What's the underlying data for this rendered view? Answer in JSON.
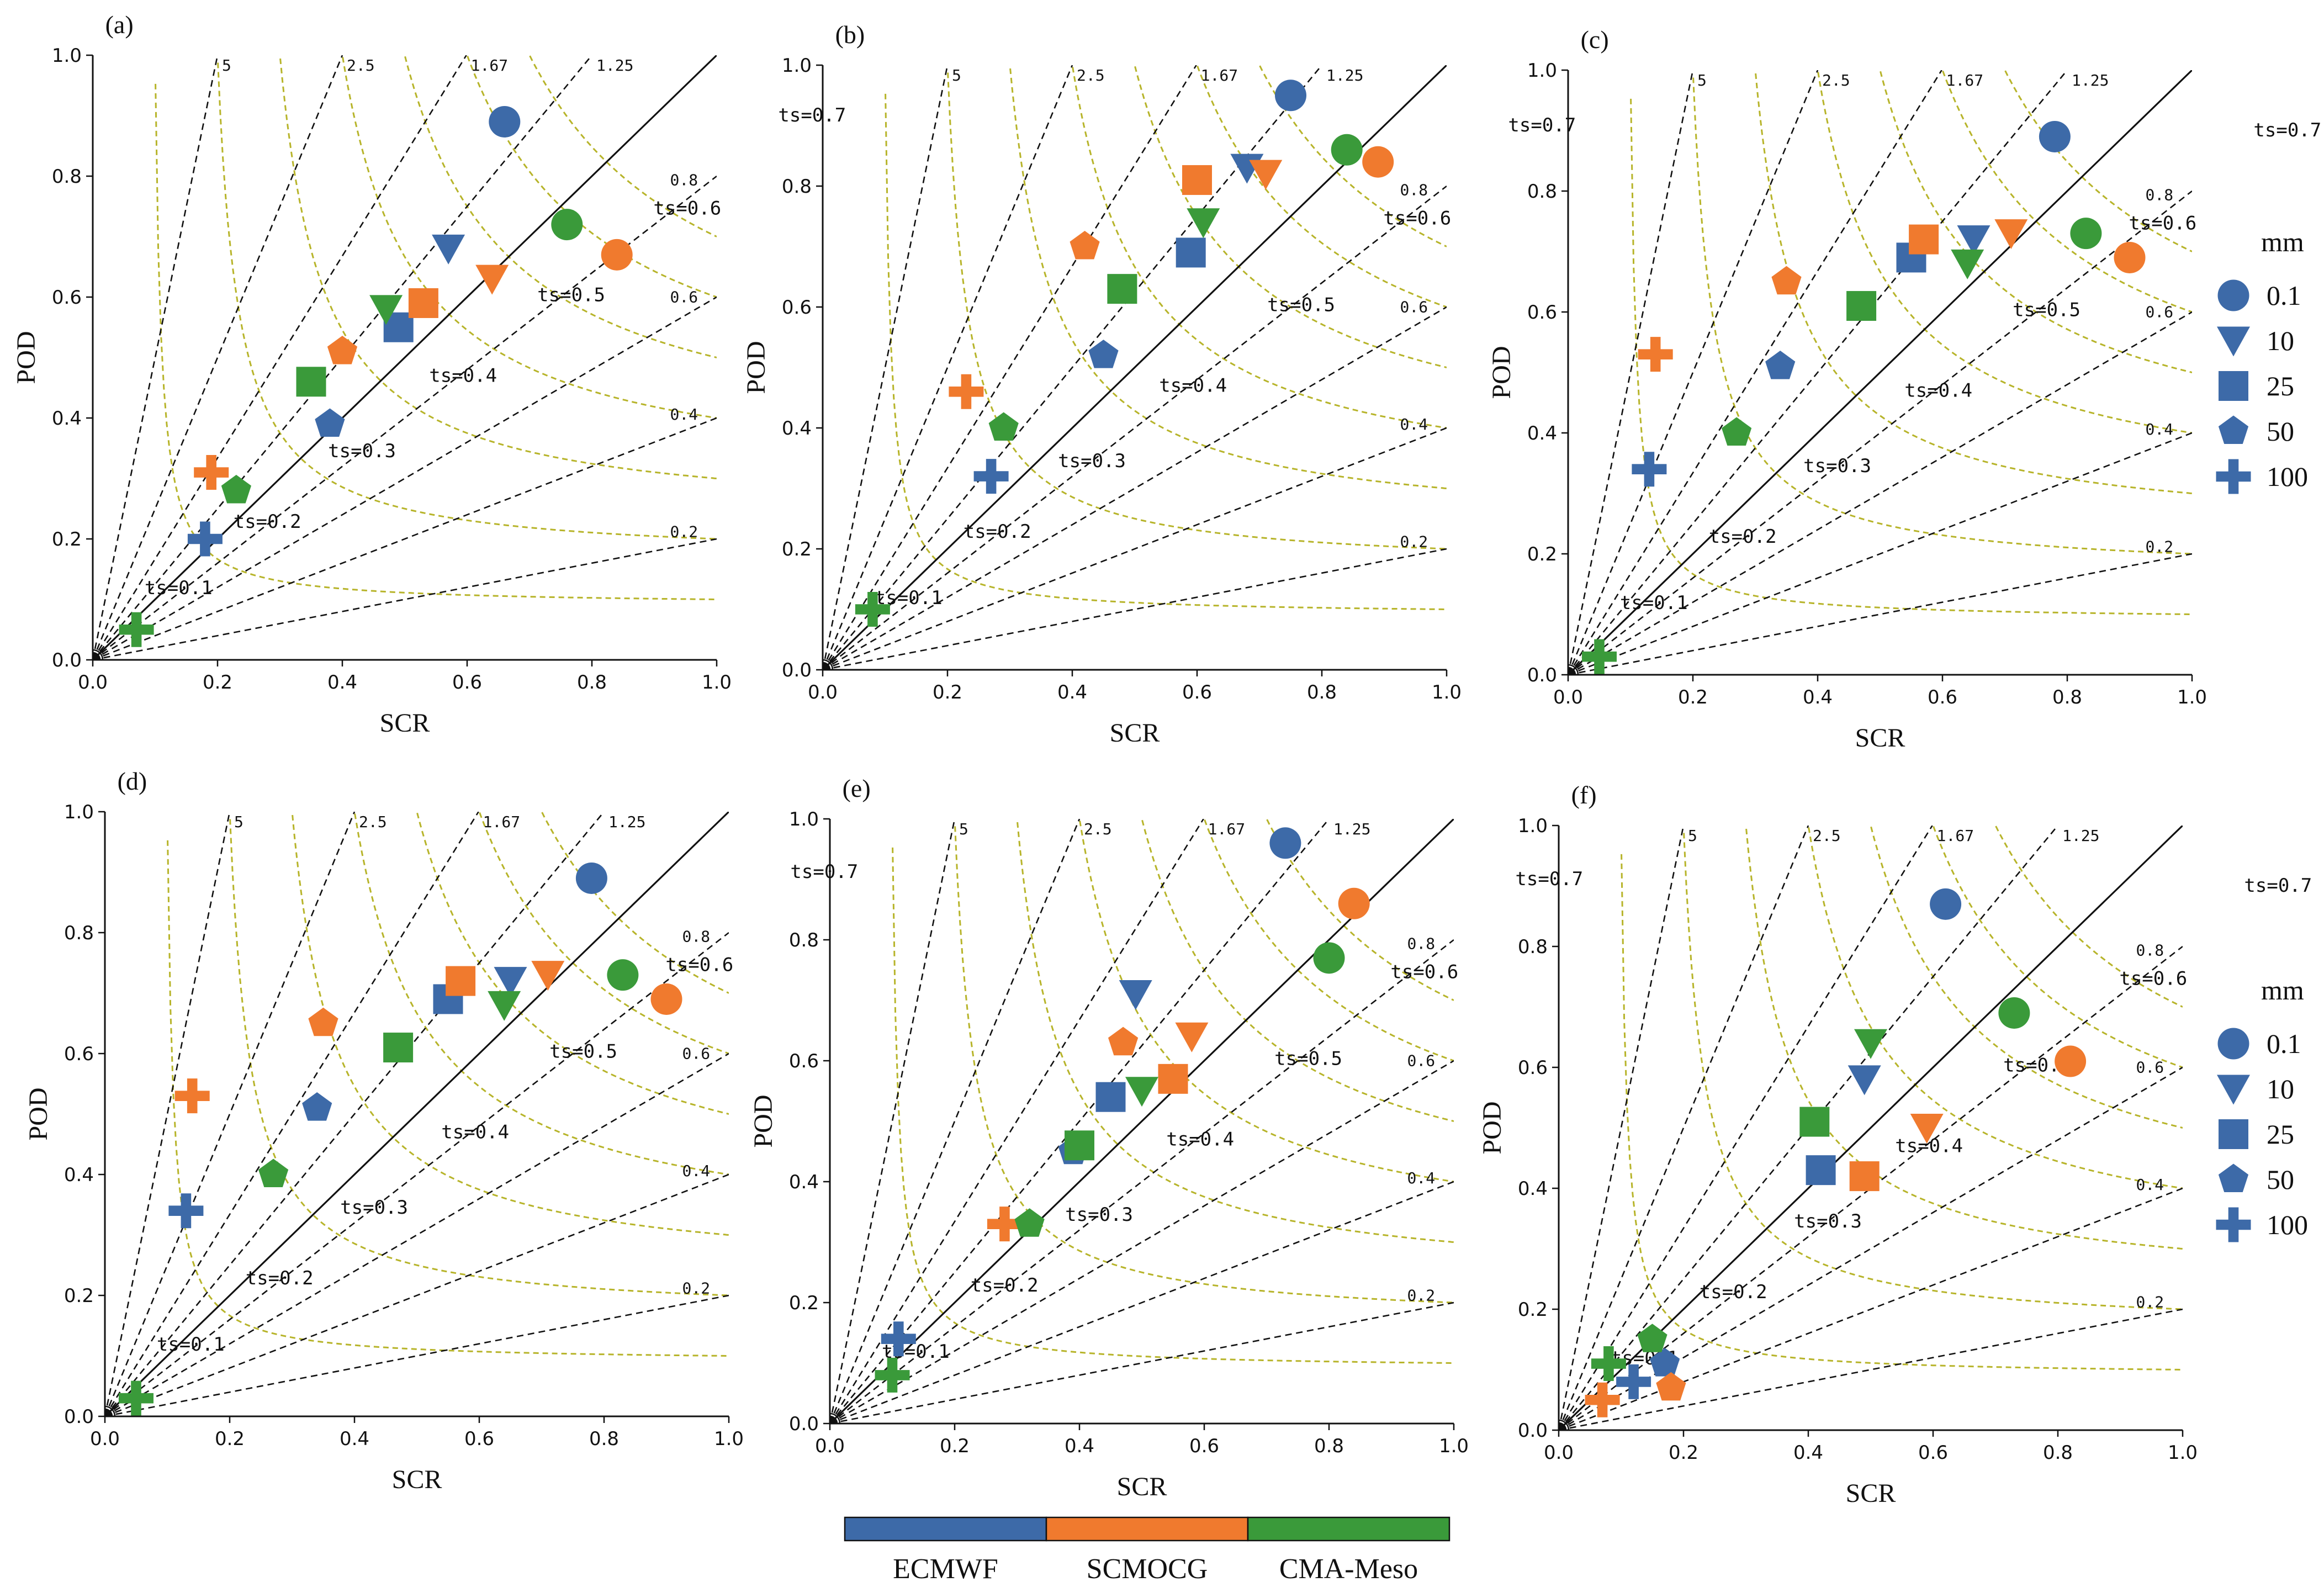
{
  "chart_data": {
    "type": "scatter",
    "figure_kind": "performance diagram",
    "xlabel": "SCR",
    "ylabel": "POD",
    "xlim": [
      0,
      1
    ],
    "ylim": [
      0,
      1
    ],
    "ticks": [
      0.0,
      0.2,
      0.4,
      0.6,
      0.8,
      1.0
    ],
    "tick_labels": [
      "0.0",
      "0.2",
      "0.4",
      "0.6",
      "0.8",
      "1.0"
    ],
    "bias_lines": [
      {
        "value": 5,
        "label": "5"
      },
      {
        "value": 2.5,
        "label": "2.5"
      },
      {
        "value": 1.67,
        "label": "1.67"
      },
      {
        "value": 1.25,
        "label": "1.25"
      },
      {
        "value": 1.0,
        "label": ""
      },
      {
        "value": 0.8,
        "label": "0.8"
      },
      {
        "value": 0.6,
        "label": "0.6"
      },
      {
        "value": 0.4,
        "label": "0.4"
      },
      {
        "value": 0.2,
        "label": "0.2"
      }
    ],
    "ts_contours": [
      {
        "value": 0.1,
        "label": "ts=0.1"
      },
      {
        "value": 0.2,
        "label": "ts=0.2"
      },
      {
        "value": 0.3,
        "label": "ts=0.3"
      },
      {
        "value": 0.4,
        "label": "ts=0.4"
      },
      {
        "value": 0.5,
        "label": "ts=0.5"
      },
      {
        "value": 0.6,
        "label": "ts=0.6"
      },
      {
        "value": 0.7,
        "label": "ts=0.7"
      }
    ],
    "models": [
      {
        "name": "ECMWF",
        "color": "#3d6aa8"
      },
      {
        "name": "SCMOCG",
        "color": "#f07a2e"
      },
      {
        "name": "CMA-Meso",
        "color": "#3a9a3a"
      }
    ],
    "thresholds": [
      {
        "label": "0.1",
        "marker": "circle"
      },
      {
        "label": "10",
        "marker": "triangle-down"
      },
      {
        "label": "25",
        "marker": "square"
      },
      {
        "label": "50",
        "marker": "pentagon"
      },
      {
        "label": "100",
        "marker": "plus"
      }
    ],
    "legend_title": "mm",
    "panels": [
      {
        "label": "(a)",
        "points": [
          {
            "model": "ECMWF",
            "threshold": "0.1",
            "x": 0.66,
            "y": 0.89
          },
          {
            "model": "ECMWF",
            "threshold": "10",
            "x": 0.57,
            "y": 0.68
          },
          {
            "model": "ECMWF",
            "threshold": "25",
            "x": 0.49,
            "y": 0.55
          },
          {
            "model": "ECMWF",
            "threshold": "50",
            "x": 0.38,
            "y": 0.39
          },
          {
            "model": "ECMWF",
            "threshold": "100",
            "x": 0.18,
            "y": 0.2
          },
          {
            "model": "SCMOCG",
            "threshold": "0.1",
            "x": 0.84,
            "y": 0.67
          },
          {
            "model": "SCMOCG",
            "threshold": "10",
            "x": 0.64,
            "y": 0.63
          },
          {
            "model": "SCMOCG",
            "threshold": "25",
            "x": 0.53,
            "y": 0.59
          },
          {
            "model": "SCMOCG",
            "threshold": "50",
            "x": 0.4,
            "y": 0.51
          },
          {
            "model": "SCMOCG",
            "threshold": "100",
            "x": 0.19,
            "y": 0.31
          },
          {
            "model": "CMA-Meso",
            "threshold": "0.1",
            "x": 0.76,
            "y": 0.72
          },
          {
            "model": "CMA-Meso",
            "threshold": "10",
            "x": 0.47,
            "y": 0.58
          },
          {
            "model": "CMA-Meso",
            "threshold": "25",
            "x": 0.35,
            "y": 0.46
          },
          {
            "model": "CMA-Meso",
            "threshold": "50",
            "x": 0.23,
            "y": 0.28
          },
          {
            "model": "CMA-Meso",
            "threshold": "100",
            "x": 0.07,
            "y": 0.05
          }
        ]
      },
      {
        "label": "(b)",
        "points": [
          {
            "model": "ECMWF",
            "threshold": "0.1",
            "x": 0.75,
            "y": 0.95
          },
          {
            "model": "ECMWF",
            "threshold": "10",
            "x": 0.68,
            "y": 0.83
          },
          {
            "model": "ECMWF",
            "threshold": "25",
            "x": 0.59,
            "y": 0.69
          },
          {
            "model": "ECMWF",
            "threshold": "50",
            "x": 0.45,
            "y": 0.52
          },
          {
            "model": "ECMWF",
            "threshold": "100",
            "x": 0.27,
            "y": 0.32
          },
          {
            "model": "SCMOCG",
            "threshold": "0.1",
            "x": 0.89,
            "y": 0.84
          },
          {
            "model": "SCMOCG",
            "threshold": "10",
            "x": 0.71,
            "y": 0.82
          },
          {
            "model": "SCMOCG",
            "threshold": "25",
            "x": 0.6,
            "y": 0.81
          },
          {
            "model": "SCMOCG",
            "threshold": "50",
            "x": 0.42,
            "y": 0.7
          },
          {
            "model": "SCMOCG",
            "threshold": "100",
            "x": 0.23,
            "y": 0.46
          },
          {
            "model": "CMA-Meso",
            "threshold": "0.1",
            "x": 0.84,
            "y": 0.86
          },
          {
            "model": "CMA-Meso",
            "threshold": "10",
            "x": 0.61,
            "y": 0.74
          },
          {
            "model": "CMA-Meso",
            "threshold": "25",
            "x": 0.48,
            "y": 0.63
          },
          {
            "model": "CMA-Meso",
            "threshold": "50",
            "x": 0.29,
            "y": 0.4
          },
          {
            "model": "CMA-Meso",
            "threshold": "100",
            "x": 0.08,
            "y": 0.1
          }
        ]
      },
      {
        "label": "(c)",
        "points": [
          {
            "model": "ECMWF",
            "threshold": "0.1",
            "x": 0.78,
            "y": 0.89
          },
          {
            "model": "ECMWF",
            "threshold": "10",
            "x": 0.65,
            "y": 0.72
          },
          {
            "model": "ECMWF",
            "threshold": "25",
            "x": 0.55,
            "y": 0.69
          },
          {
            "model": "ECMWF",
            "threshold": "50",
            "x": 0.34,
            "y": 0.51
          },
          {
            "model": "ECMWF",
            "threshold": "100",
            "x": 0.13,
            "y": 0.34
          },
          {
            "model": "SCMOCG",
            "threshold": "0.1",
            "x": 0.9,
            "y": 0.69
          },
          {
            "model": "SCMOCG",
            "threshold": "10",
            "x": 0.71,
            "y": 0.73
          },
          {
            "model": "SCMOCG",
            "threshold": "25",
            "x": 0.57,
            "y": 0.72
          },
          {
            "model": "SCMOCG",
            "threshold": "50",
            "x": 0.35,
            "y": 0.65
          },
          {
            "model": "SCMOCG",
            "threshold": "100",
            "x": 0.14,
            "y": 0.53
          },
          {
            "model": "CMA-Meso",
            "threshold": "0.1",
            "x": 0.83,
            "y": 0.73
          },
          {
            "model": "CMA-Meso",
            "threshold": "10",
            "x": 0.64,
            "y": 0.68
          },
          {
            "model": "CMA-Meso",
            "threshold": "25",
            "x": 0.47,
            "y": 0.61
          },
          {
            "model": "CMA-Meso",
            "threshold": "50",
            "x": 0.27,
            "y": 0.4
          },
          {
            "model": "CMA-Meso",
            "threshold": "100",
            "x": 0.05,
            "y": 0.03
          }
        ]
      },
      {
        "label": "(d)",
        "points": [
          {
            "model": "ECMWF",
            "threshold": "0.1",
            "x": 0.78,
            "y": 0.89
          },
          {
            "model": "ECMWF",
            "threshold": "10",
            "x": 0.65,
            "y": 0.72
          },
          {
            "model": "ECMWF",
            "threshold": "25",
            "x": 0.55,
            "y": 0.69
          },
          {
            "model": "ECMWF",
            "threshold": "50",
            "x": 0.34,
            "y": 0.51
          },
          {
            "model": "ECMWF",
            "threshold": "100",
            "x": 0.13,
            "y": 0.34
          },
          {
            "model": "SCMOCG",
            "threshold": "0.1",
            "x": 0.9,
            "y": 0.69
          },
          {
            "model": "SCMOCG",
            "threshold": "10",
            "x": 0.71,
            "y": 0.73
          },
          {
            "model": "SCMOCG",
            "threshold": "25",
            "x": 0.57,
            "y": 0.72
          },
          {
            "model": "SCMOCG",
            "threshold": "50",
            "x": 0.35,
            "y": 0.65
          },
          {
            "model": "SCMOCG",
            "threshold": "100",
            "x": 0.14,
            "y": 0.53
          },
          {
            "model": "CMA-Meso",
            "threshold": "0.1",
            "x": 0.83,
            "y": 0.73
          },
          {
            "model": "CMA-Meso",
            "threshold": "10",
            "x": 0.64,
            "y": 0.68
          },
          {
            "model": "CMA-Meso",
            "threshold": "25",
            "x": 0.47,
            "y": 0.61
          },
          {
            "model": "CMA-Meso",
            "threshold": "50",
            "x": 0.27,
            "y": 0.4
          },
          {
            "model": "CMA-Meso",
            "threshold": "100",
            "x": 0.05,
            "y": 0.03
          }
        ]
      },
      {
        "label": "(e)",
        "points": [
          {
            "model": "ECMWF",
            "threshold": "0.1",
            "x": 0.73,
            "y": 0.96
          },
          {
            "model": "ECMWF",
            "threshold": "10",
            "x": 0.49,
            "y": 0.71
          },
          {
            "model": "ECMWF",
            "threshold": "25",
            "x": 0.45,
            "y": 0.54
          },
          {
            "model": "ECMWF",
            "threshold": "50",
            "x": 0.39,
            "y": 0.45
          },
          {
            "model": "ECMWF",
            "threshold": "100",
            "x": 0.11,
            "y": 0.14
          },
          {
            "model": "SCMOCG",
            "threshold": "0.1",
            "x": 0.84,
            "y": 0.86
          },
          {
            "model": "SCMOCG",
            "threshold": "10",
            "x": 0.58,
            "y": 0.64
          },
          {
            "model": "SCMOCG",
            "threshold": "25",
            "x": 0.55,
            "y": 0.57
          },
          {
            "model": "SCMOCG",
            "threshold": "50",
            "x": 0.47,
            "y": 0.63
          },
          {
            "model": "SCMOCG",
            "threshold": "100",
            "x": 0.28,
            "y": 0.33
          },
          {
            "model": "CMA-Meso",
            "threshold": "0.1",
            "x": 0.8,
            "y": 0.77
          },
          {
            "model": "CMA-Meso",
            "threshold": "10",
            "x": 0.5,
            "y": 0.55
          },
          {
            "model": "CMA-Meso",
            "threshold": "25",
            "x": 0.4,
            "y": 0.46
          },
          {
            "model": "CMA-Meso",
            "threshold": "50",
            "x": 0.32,
            "y": 0.33
          },
          {
            "model": "CMA-Meso",
            "threshold": "100",
            "x": 0.1,
            "y": 0.08
          }
        ]
      },
      {
        "label": "(f)",
        "points": [
          {
            "model": "ECMWF",
            "threshold": "0.1",
            "x": 0.62,
            "y": 0.87
          },
          {
            "model": "ECMWF",
            "threshold": "10",
            "x": 0.49,
            "y": 0.58
          },
          {
            "model": "ECMWF",
            "threshold": "25",
            "x": 0.42,
            "y": 0.43
          },
          {
            "model": "ECMWF",
            "threshold": "50",
            "x": 0.17,
            "y": 0.11
          },
          {
            "model": "ECMWF",
            "threshold": "100",
            "x": 0.12,
            "y": 0.08
          },
          {
            "model": "SCMOCG",
            "threshold": "0.1",
            "x": 0.82,
            "y": 0.61
          },
          {
            "model": "SCMOCG",
            "threshold": "10",
            "x": 0.59,
            "y": 0.5
          },
          {
            "model": "SCMOCG",
            "threshold": "25",
            "x": 0.49,
            "y": 0.42
          },
          {
            "model": "SCMOCG",
            "threshold": "50",
            "x": 0.18,
            "y": 0.07
          },
          {
            "model": "SCMOCG",
            "threshold": "100",
            "x": 0.07,
            "y": 0.05
          },
          {
            "model": "CMA-Meso",
            "threshold": "0.1",
            "x": 0.73,
            "y": 0.69
          },
          {
            "model": "CMA-Meso",
            "threshold": "10",
            "x": 0.5,
            "y": 0.64
          },
          {
            "model": "CMA-Meso",
            "threshold": "25",
            "x": 0.41,
            "y": 0.51
          },
          {
            "model": "CMA-Meso",
            "threshold": "50",
            "x": 0.15,
            "y": 0.15
          },
          {
            "model": "CMA-Meso",
            "threshold": "100",
            "x": 0.08,
            "y": 0.11
          }
        ]
      }
    ]
  }
}
